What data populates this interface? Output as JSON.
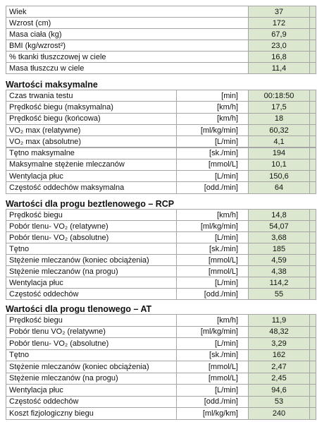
{
  "top_table": {
    "rows": [
      [
        "Wiek",
        "37"
      ],
      [
        "Wzrost (cm)",
        "172"
      ],
      [
        "Masa ciała (kg)",
        "67,9"
      ],
      [
        "BMI (kg/wzrost²)",
        "23,0"
      ],
      [
        "% tkanki tłuszczowej w ciele",
        "16,8"
      ],
      [
        "Masa tłuszczu w ciele",
        "11,4"
      ]
    ]
  },
  "sections": [
    {
      "title": "Wartości maksymalne",
      "rows": [
        [
          "Czas trwania testu",
          "[min]",
          "00:18:50"
        ],
        [
          "Prędkość biegu (maksymalna)",
          "[km/h]",
          "17,5"
        ],
        [
          "Prędkość biegu (końcowa)",
          "[km/h]",
          "18"
        ],
        [
          "VO₂ max (relatywne)",
          "[ml/kg/min]",
          "60,32"
        ],
        [
          "VO₂ max (absolutne)",
          "[L/min]",
          "4,1"
        ],
        [
          "Tętno maksymalne",
          "[sk./min]",
          "194"
        ],
        [
          "Maksymalne stężenie mleczanów",
          "[mmol/L]",
          "10,1"
        ],
        [
          "Wentylacja płuc",
          "[L/min]",
          "150,6"
        ],
        [
          "Częstość oddechów maksymalna",
          "[odd./min]",
          "64"
        ]
      ]
    },
    {
      "title": "Wartości dla progu beztlenowego – RCP",
      "rows": [
        [
          "Prędkość biegu",
          "[km/h]",
          "14,8"
        ],
        [
          "Pobór tlenu- VO₂ (relatywne)",
          "[ml/kg/min]",
          "54,07"
        ],
        [
          "Pobór tlenu- VO₂ (absolutne)",
          "[L/min]",
          "3,68"
        ],
        [
          "Tętno",
          "[sk./min]",
          "185"
        ],
        [
          "Stężenie mleczanów (koniec obciążenia)",
          "[mmol/L]",
          "4,59"
        ],
        [
          "Stężenie mleczanów (na progu)",
          "[mmol/L]",
          "4,38"
        ],
        [
          "Wentylacja płuc",
          "[L/min]",
          "114,2"
        ],
        [
          "Częstość oddechów",
          "[odd./min]",
          "55"
        ]
      ]
    },
    {
      "title": "Wartości dla progu tlenowego – AT",
      "rows": [
        [
          "Prędkość biegu",
          "[km/h]",
          "11,9"
        ],
        [
          "Pobór tlenu VO₂ (relatywne)",
          "[ml/kg/min]",
          "48,32"
        ],
        [
          "Pobór tlenu- VO₂ (absolutne)",
          "[L/min]",
          "3,29"
        ],
        [
          "Tętno",
          "[sk./min]",
          "162"
        ],
        [
          "Stężenie mleczanów (koniec obciążenia)",
          "[mmol/L]",
          "2,47"
        ],
        [
          "Stężenie mleczanów (na progu)",
          "[mmol/L]",
          "2,45"
        ],
        [
          "Wentylacja płuc",
          "[L/min]",
          "94,6"
        ],
        [
          "Częstość oddechów",
          "[odd./min]",
          "53"
        ],
        [
          "Koszt fizjologiczny biegu",
          "[ml/kg/km]",
          "240"
        ]
      ]
    }
  ]
}
